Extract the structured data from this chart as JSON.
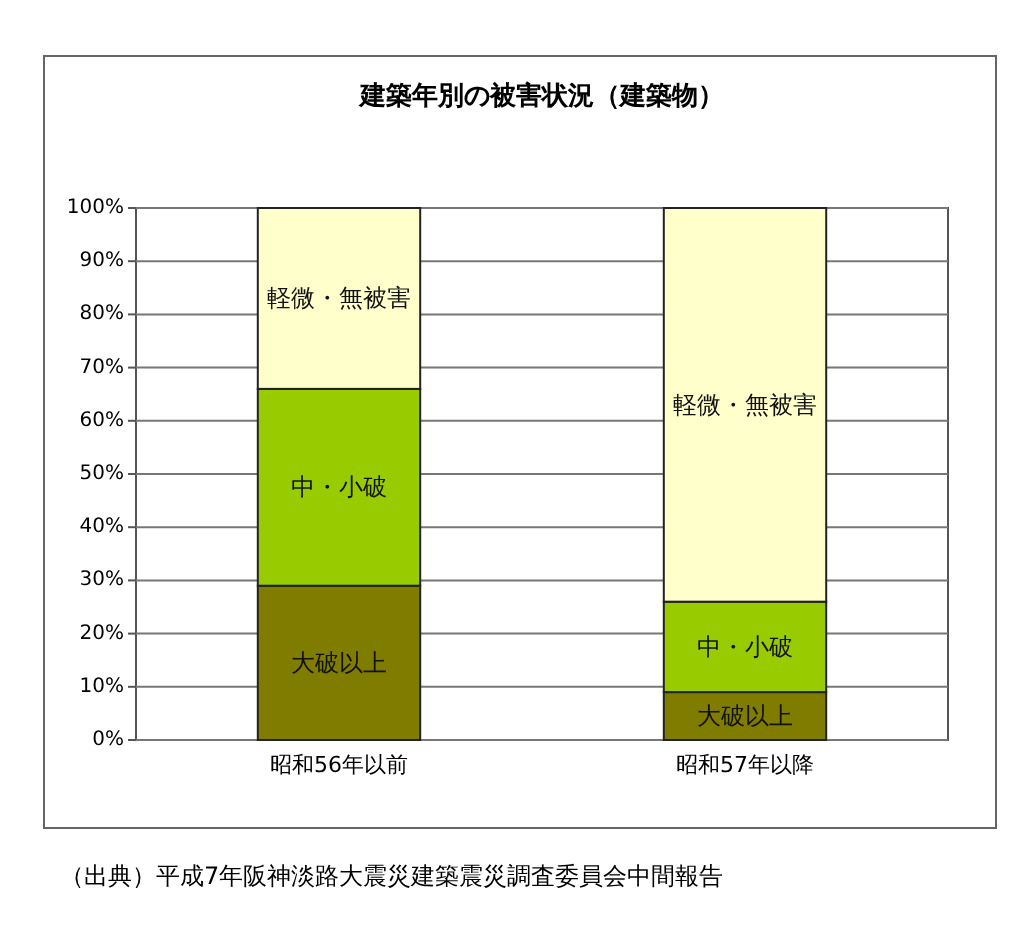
{
  "chart_data": {
    "type": "bar",
    "title": "建築年別の被害状況（建築物）",
    "categories": [
      "昭和56年以前",
      "昭和57年以降"
    ],
    "stacked": true,
    "ylim": [
      0,
      100
    ],
    "yticks": [
      {
        "value": 0,
        "label": "0%"
      },
      {
        "value": 10,
        "label": "10%"
      },
      {
        "value": 20,
        "label": "20%"
      },
      {
        "value": 30,
        "label": "30%"
      },
      {
        "value": 40,
        "label": "40%"
      },
      {
        "value": 50,
        "label": "50%"
      },
      {
        "value": 60,
        "label": "60%"
      },
      {
        "value": 70,
        "label": "70%"
      },
      {
        "value": 80,
        "label": "80%"
      },
      {
        "value": 90,
        "label": "90%"
      },
      {
        "value": 100,
        "label": "100%"
      }
    ],
    "grid": "y",
    "series": [
      {
        "name": "大破以上",
        "color": "#7f7c00",
        "values": [
          29,
          9
        ]
      },
      {
        "name": "中・小破",
        "color": "#99cc00",
        "values": [
          37,
          17
        ]
      },
      {
        "name": "軽微・無被害",
        "color": "#ffffcc",
        "values": [
          34,
          74
        ]
      }
    ],
    "annotations": [
      "（出典）平成7年阪神淡路大震災建築震災調査委員会中間報告"
    ]
  }
}
